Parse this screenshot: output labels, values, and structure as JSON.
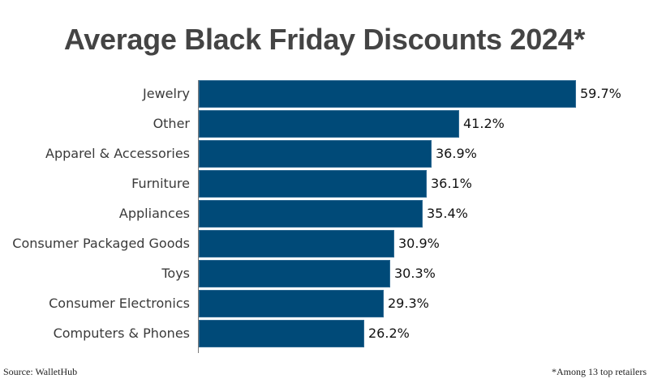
{
  "chart_data": {
    "type": "bar",
    "orientation": "horizontal",
    "title": "Average Black Friday Discounts 2024*",
    "xlabel": "",
    "ylabel": "",
    "categories": [
      "Jewelry",
      "Other",
      "Apparel & Accessories",
      "Furniture",
      "Appliances",
      "Consumer Packaged Goods",
      "Toys",
      "Consumer Electronics",
      "Computers & Phones"
    ],
    "values": [
      59.7,
      41.2,
      36.9,
      36.1,
      35.4,
      30.9,
      30.3,
      29.3,
      26.2
    ],
    "value_labels": [
      "59.7%",
      "41.2%",
      "36.9%",
      "36.1%",
      "35.4%",
      "30.9%",
      "30.3%",
      "29.3%",
      "26.2%"
    ],
    "unit": "%",
    "grid": false,
    "legend": null,
    "bar_color": "#004a78"
  },
  "footer": {
    "source": "Source: WalletHub",
    "note": "*Among 13 top retailers"
  }
}
